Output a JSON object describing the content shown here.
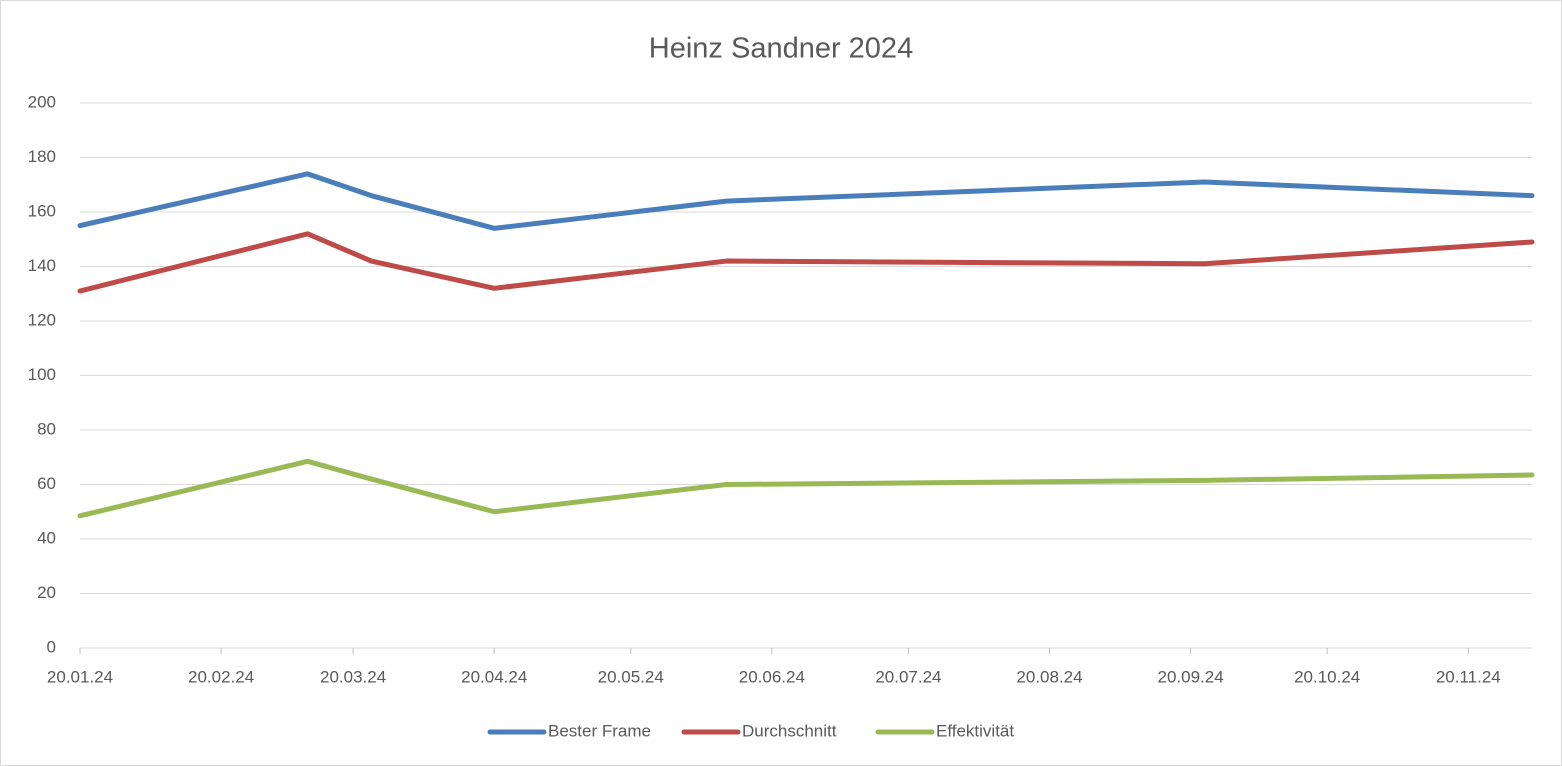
{
  "chart_data": {
    "type": "line",
    "title": "Heinz Sandner 2024",
    "x": [
      "20.01.24",
      "10.03.24",
      "24.03.24",
      "20.04.24",
      "10.06.24",
      "23.09.24",
      "04.12.24"
    ],
    "series": [
      {
        "name": "Bester Frame",
        "color": "#4a7ebb",
        "values": [
          155,
          174,
          166,
          154,
          164,
          171,
          166
        ]
      },
      {
        "name": "Durchschnitt",
        "color": "#be4b48",
        "values": [
          131,
          152,
          142,
          132,
          142,
          141,
          149
        ]
      },
      {
        "name": "Effektivität",
        "color": "#98b954",
        "values": [
          48.5,
          68.5,
          62,
          50,
          60,
          61.5,
          63.5
        ]
      }
    ],
    "xlim": [
      "20.01.24",
      "04.12.24"
    ],
    "xticks": [
      "20.01.24",
      "20.02.24",
      "20.03.24",
      "20.04.24",
      "20.05.24",
      "20.06.24",
      "20.07.24",
      "20.08.24",
      "20.09.24",
      "20.10.24",
      "20.11.24"
    ],
    "ylim": [
      0,
      200
    ],
    "yticks": [
      0,
      20,
      40,
      60,
      80,
      100,
      120,
      140,
      160,
      180,
      200
    ],
    "grid": true,
    "legend": "bottom"
  }
}
